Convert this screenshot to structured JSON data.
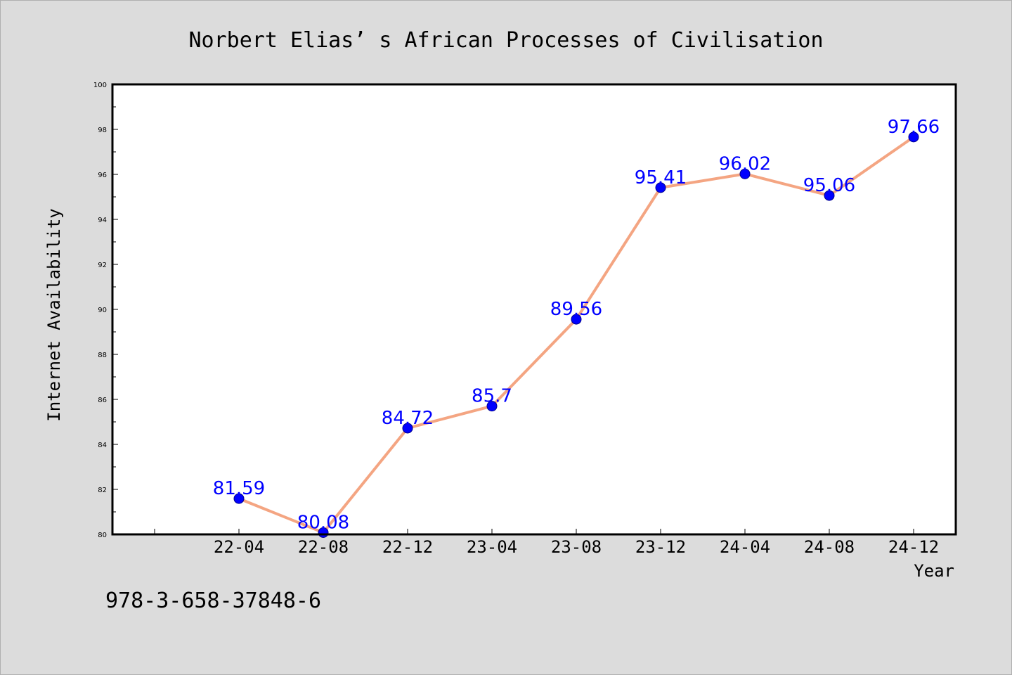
{
  "chart_data": {
    "type": "line",
    "title": "Norbert Elias’ s African Processes of Civilisation",
    "xlabel": "Year",
    "ylabel": "Internet Availability",
    "categories": [
      "22-04",
      "22-08",
      "22-12",
      "23-04",
      "23-08",
      "23-12",
      "24-04",
      "24-08",
      "24-12"
    ],
    "series": [
      {
        "values": [
          81.59,
          80.08,
          84.72,
          85.7,
          89.56,
          95.41,
          96.02,
          95.06,
          97.66
        ],
        "labels": [
          "81.59",
          "80.08",
          "84.72",
          "85.7",
          "89.56",
          "95.41",
          "96.02",
          "95.06",
          "97.66"
        ]
      }
    ],
    "ylim": [
      80,
      100
    ],
    "yticks": [
      "80",
      "82",
      "84",
      "86",
      "88",
      "90",
      "92",
      "94",
      "96",
      "98",
      "100"
    ],
    "grid": false,
    "line_color": "#f4a582",
    "marker_color": "#0000ff",
    "label_color": "#0000ff"
  },
  "footer": {
    "isbn": "978-3-658-37848-6"
  }
}
